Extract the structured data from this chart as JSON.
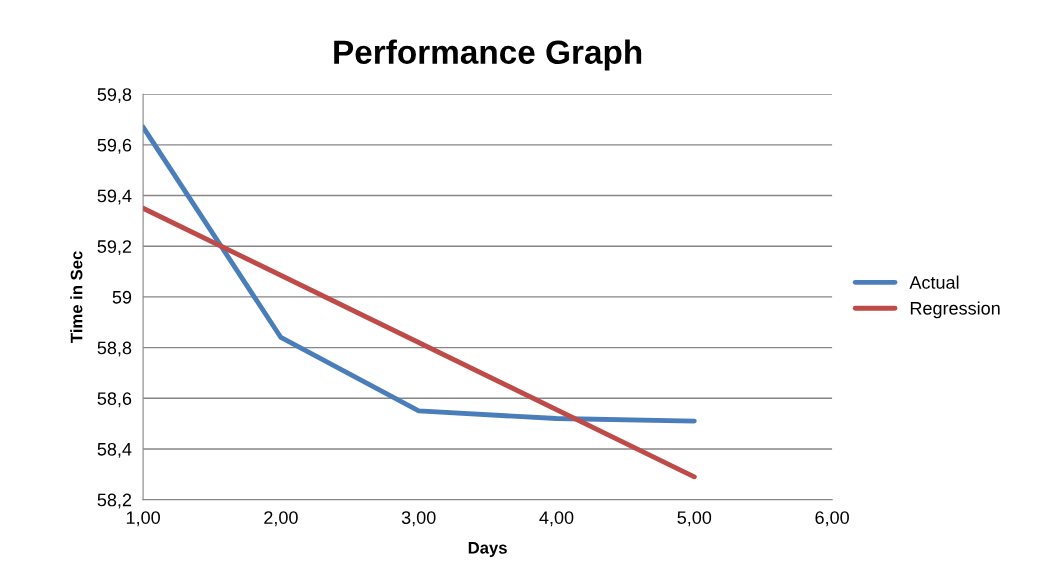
{
  "chart_data": {
    "type": "line",
    "title": "Performance Graph",
    "xlabel": "Days",
    "ylabel": "Time in Sec",
    "x": [
      1,
      2,
      3,
      4,
      5
    ],
    "series": [
      {
        "name": "Actual",
        "color": "#4a7ebb",
        "values": [
          59.67,
          58.84,
          58.55,
          58.52,
          58.51
        ]
      },
      {
        "name": "Regression",
        "color": "#be4b48",
        "x": [
          1,
          5
        ],
        "values": [
          59.35,
          58.29
        ]
      }
    ],
    "xlim": [
      1,
      6
    ],
    "xticks": [
      {
        "value": 1,
        "label": "1,00"
      },
      {
        "value": 2,
        "label": "2,00"
      },
      {
        "value": 3,
        "label": "3,00"
      },
      {
        "value": 4,
        "label": "4,00"
      },
      {
        "value": 5,
        "label": "5,00"
      },
      {
        "value": 6,
        "label": "6,00"
      }
    ],
    "ylim": [
      58.2,
      59.8
    ],
    "yticks": [
      {
        "value": 58.2,
        "label": "58,2"
      },
      {
        "value": 58.4,
        "label": "58,4"
      },
      {
        "value": 58.6,
        "label": "58,6"
      },
      {
        "value": 58.8,
        "label": "58,8"
      },
      {
        "value": 59,
        "label": "59"
      },
      {
        "value": 59.2,
        "label": "59,2"
      },
      {
        "value": 59.4,
        "label": "59,4"
      },
      {
        "value": 59.6,
        "label": "59,6"
      },
      {
        "value": 59.8,
        "label": "59,8"
      }
    ],
    "grid": "y",
    "legend": "right",
    "marker": "none",
    "line_style": "solid"
  }
}
